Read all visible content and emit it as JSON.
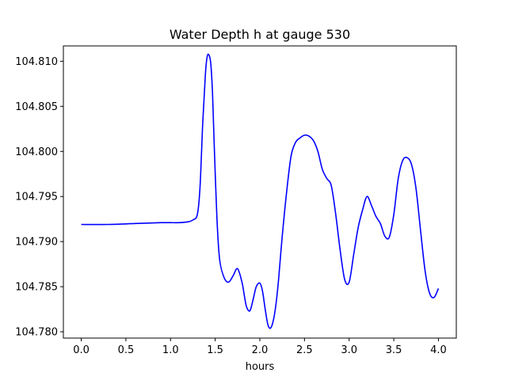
{
  "chart_data": {
    "type": "line",
    "title": "Water Depth h at gauge 530",
    "xlabel": "hours",
    "ylabel": "",
    "xlim": [
      -0.2,
      4.2
    ],
    "ylim": [
      104.7793,
      104.8117
    ],
    "xticks": [
      0.0,
      0.5,
      1.0,
      1.5,
      2.0,
      2.5,
      3.0,
      3.5,
      4.0
    ],
    "xtick_labels": [
      "0.0",
      "0.5",
      "1.0",
      "1.5",
      "2.0",
      "2.5",
      "3.0",
      "3.5",
      "4.0"
    ],
    "yticks": [
      104.78,
      104.785,
      104.79,
      104.795,
      104.8,
      104.805,
      104.81
    ],
    "ytick_labels": [
      "104.780",
      "104.785",
      "104.790",
      "104.795",
      "104.800",
      "104.805",
      "104.810"
    ],
    "grid": false,
    "color": "#0000ff",
    "series": [
      {
        "x": [
          0.0,
          0.3,
          0.6,
          0.9,
          1.0,
          1.1,
          1.2,
          1.25,
          1.3,
          1.33,
          1.36,
          1.39,
          1.41,
          1.43,
          1.45,
          1.47,
          1.49,
          1.52,
          1.55,
          1.6,
          1.65,
          1.7,
          1.75,
          1.8,
          1.83,
          1.85,
          1.88,
          1.9,
          1.93,
          1.96,
          2.0,
          2.03,
          2.06,
          2.09,
          2.12,
          2.15,
          2.18,
          2.21,
          2.25,
          2.3,
          2.35,
          2.4,
          2.45,
          2.5,
          2.55,
          2.6,
          2.65,
          2.7,
          2.75,
          2.8,
          2.85,
          2.9,
          2.95,
          3.0,
          3.05,
          3.1,
          3.15,
          3.2,
          3.25,
          3.3,
          3.35,
          3.4,
          3.45,
          3.5,
          3.55,
          3.6,
          3.65,
          3.7,
          3.75,
          3.8,
          3.85,
          3.9,
          3.95,
          4.0
        ],
        "y": [
          104.7919,
          104.7919,
          104.792,
          104.7921,
          104.7921,
          104.7921,
          104.7922,
          104.7924,
          104.793,
          104.796,
          104.803,
          104.8085,
          104.8105,
          104.8107,
          104.8098,
          104.8065,
          104.8005,
          104.7925,
          104.788,
          104.786,
          104.7855,
          104.7862,
          104.787,
          104.7855,
          104.7838,
          104.7828,
          104.7823,
          104.7826,
          104.7838,
          104.785,
          104.7854,
          104.7845,
          104.7825,
          104.7808,
          104.7804,
          104.7812,
          104.783,
          104.7858,
          104.7905,
          104.7955,
          104.7995,
          104.801,
          104.8015,
          104.8018,
          104.8017,
          104.8012,
          104.8,
          104.798,
          104.797,
          104.7962,
          104.793,
          104.789,
          104.7858,
          104.7855,
          104.7885,
          104.7915,
          104.7935,
          104.795,
          104.794,
          104.7928,
          104.792,
          104.7906,
          104.7905,
          104.793,
          104.797,
          104.799,
          104.7993,
          104.7985,
          104.7958,
          104.7912,
          104.7868,
          104.7843,
          104.7838,
          104.7848
        ]
      }
    ]
  }
}
